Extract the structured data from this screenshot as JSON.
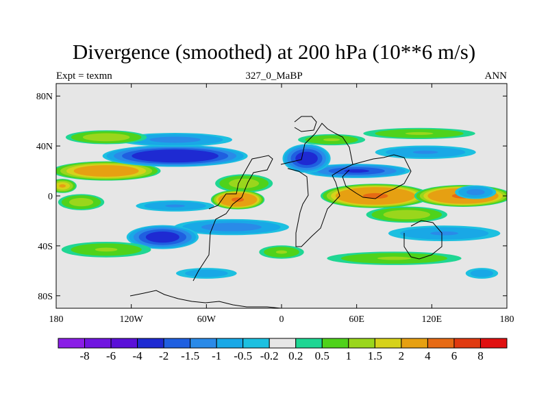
{
  "chart_data": {
    "type": "heatmap",
    "title": "Divergence (smoothed) at 200 hPa (10**6 m/s)",
    "subtitle_left": "Expt = texmn",
    "subtitle_center": "327_0_MaBP",
    "subtitle_right": "ANN",
    "xlim": [
      -180,
      180
    ],
    "ylim": [
      -90,
      90
    ],
    "x_ticks": [
      {
        "value": -180,
        "label": "180"
      },
      {
        "value": -120,
        "label": "120W"
      },
      {
        "value": -60,
        "label": "60W"
      },
      {
        "value": 0,
        "label": "0"
      },
      {
        "value": 60,
        "label": "60E"
      },
      {
        "value": 120,
        "label": "120E"
      },
      {
        "value": 180,
        "label": "180"
      }
    ],
    "y_ticks": [
      {
        "value": 80,
        "label": "80N"
      },
      {
        "value": 40,
        "label": "40N"
      },
      {
        "value": 0,
        "label": "0"
      },
      {
        "value": -40,
        "label": "40S"
      },
      {
        "value": -80,
        "label": "80S"
      }
    ],
    "colorbar": {
      "levels": [
        "-8",
        "-6",
        "-4",
        "-2",
        "-1.5",
        "-1",
        "-0.5",
        "-0.2",
        "0.2",
        "0.5",
        "1",
        "1.5",
        "2",
        "4",
        "6",
        "8"
      ],
      "colors": [
        "#8a1ee6",
        "#7015e0",
        "#5a10d8",
        "#1e2ad2",
        "#1f5fe0",
        "#2a8ae8",
        "#19a8e6",
        "#1dc0e0",
        "#e6e6e6",
        "#1fd693",
        "#4fd21b",
        "#9ad61c",
        "#d6d21a",
        "#e6a012",
        "#e66a14",
        "#e03a10",
        "#e01010"
      ]
    },
    "field": [
      {
        "lon": -140,
        "lat": 20,
        "rx": 45,
        "ry": 8,
        "v": 3
      },
      {
        "lon": -175,
        "lat": 8,
        "rx": 12,
        "ry": 6,
        "v": 2
      },
      {
        "lon": -160,
        "lat": -5,
        "rx": 20,
        "ry": 7,
        "v": 1.3
      },
      {
        "lon": -85,
        "lat": 32,
        "rx": 60,
        "ry": 9,
        "v": -3
      },
      {
        "lon": -85,
        "lat": 45,
        "rx": 50,
        "ry": 6,
        "v": -1.2
      },
      {
        "lon": -140,
        "lat": 47,
        "rx": 35,
        "ry": 6,
        "v": 1.4
      },
      {
        "lon": -30,
        "lat": 10,
        "rx": 25,
        "ry": 8,
        "v": 1.3
      },
      {
        "lon": -40,
        "lat": -25,
        "rx": 50,
        "ry": 7,
        "v": -1.3
      },
      {
        "lon": -85,
        "lat": -8,
        "rx": 35,
        "ry": 5,
        "v": -1
      },
      {
        "lon": -35,
        "lat": -3,
        "rx": 22,
        "ry": 8,
        "v": 4
      },
      {
        "lon": -95,
        "lat": -33,
        "rx": 30,
        "ry": 10,
        "v": -2.5
      },
      {
        "lon": -140,
        "lat": -43,
        "rx": 40,
        "ry": 7,
        "v": 1
      },
      {
        "lon": -60,
        "lat": -62,
        "rx": 28,
        "ry": 5,
        "v": -0.8
      },
      {
        "lon": 75,
        "lat": 0,
        "rx": 45,
        "ry": 10,
        "v": 4
      },
      {
        "lon": 145,
        "lat": 0,
        "rx": 40,
        "ry": 9,
        "v": 4
      },
      {
        "lon": 60,
        "lat": 20,
        "rx": 45,
        "ry": 6,
        "v": -2
      },
      {
        "lon": 115,
        "lat": 35,
        "rx": 45,
        "ry": 6,
        "v": -1
      },
      {
        "lon": 20,
        "lat": 30,
        "rx": 20,
        "ry": 12,
        "v": -2.5
      },
      {
        "lon": 130,
        "lat": -30,
        "rx": 50,
        "ry": 7,
        "v": -1
      },
      {
        "lon": 155,
        "lat": 3,
        "rx": 18,
        "ry": 6,
        "v": -1.2
      },
      {
        "lon": 100,
        "lat": -15,
        "rx": 35,
        "ry": 7,
        "v": 1.4
      },
      {
        "lon": 90,
        "lat": -50,
        "rx": 60,
        "ry": 6,
        "v": 1
      },
      {
        "lon": 160,
        "lat": -62,
        "rx": 15,
        "ry": 5,
        "v": -0.8
      },
      {
        "lon": 110,
        "lat": 50,
        "rx": 50,
        "ry": 5,
        "v": 1
      },
      {
        "lon": 40,
        "lat": 45,
        "rx": 30,
        "ry": 5,
        "v": 1
      },
      {
        "lon": 0,
        "lat": -45,
        "rx": 20,
        "ry": 6,
        "v": 1
      }
    ]
  }
}
